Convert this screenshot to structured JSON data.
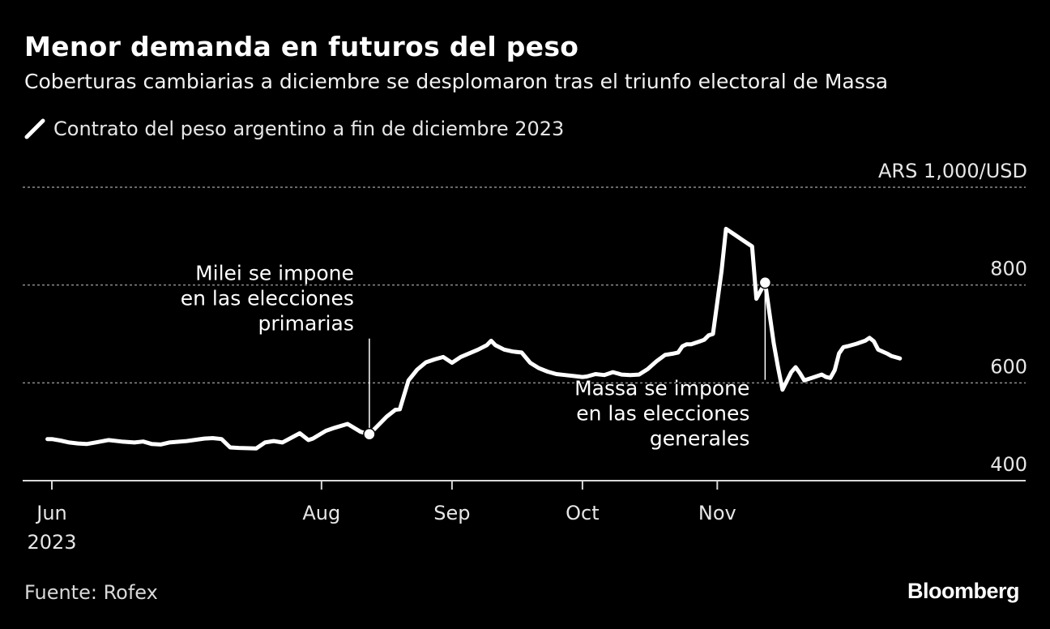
{
  "title": "Menor demanda en futuros del peso",
  "subtitle": "Coberturas cambiarias a diciembre se desplomaron tras el triunfo electoral de Massa",
  "legend": {
    "label": "Contrato del peso argentino a fin de diciembre 2023"
  },
  "source": "Fuente: Rofex",
  "brand": "Bloomberg",
  "colors": {
    "background": "#000000",
    "line": "#ffffff",
    "grid": "#8c8c8c"
  },
  "chart_data": {
    "type": "line",
    "title": "Menor demanda en futuros del peso",
    "unit": "ARS 1,000/USD",
    "ylim": [
      400,
      1000
    ],
    "yticks": [
      {
        "value": 400,
        "label": "400"
      },
      {
        "value": 600,
        "label": "600"
      },
      {
        "value": 800,
        "label": "800"
      },
      {
        "value": 1000,
        "label": ""
      }
    ],
    "grid": true,
    "x_domain": [
      "2023-06-01",
      "2023-11-30"
    ],
    "xticks": [
      {
        "date": "2023-06-01",
        "label": "Jun",
        "sublabel": "2023"
      },
      {
        "date": "2023-08-02",
        "label": "Aug",
        "sublabel": ""
      },
      {
        "date": "2023-09-01",
        "label": "Sep",
        "sublabel": ""
      },
      {
        "date": "2023-10-01",
        "label": "Oct",
        "sublabel": ""
      },
      {
        "date": "2023-11-01",
        "label": "Nov",
        "sublabel": ""
      }
    ],
    "series": [
      {
        "name": "Contrato del peso argentino a fin de diciembre 2023",
        "points": [
          [
            "2023-05-31",
            485
          ],
          [
            "2023-06-01",
            485
          ],
          [
            "2023-06-03",
            482
          ],
          [
            "2023-06-05",
            478
          ],
          [
            "2023-06-07",
            476
          ],
          [
            "2023-06-09",
            475
          ],
          [
            "2023-06-11",
            478
          ],
          [
            "2023-06-14",
            483
          ],
          [
            "2023-06-17",
            480
          ],
          [
            "2023-06-20",
            478
          ],
          [
            "2023-06-22",
            480
          ],
          [
            "2023-06-24",
            475
          ],
          [
            "2023-06-26",
            474
          ],
          [
            "2023-06-28",
            478
          ],
          [
            "2023-07-02",
            481
          ],
          [
            "2023-07-06",
            486
          ],
          [
            "2023-07-08",
            487
          ],
          [
            "2023-07-10",
            485
          ],
          [
            "2023-07-12",
            468
          ],
          [
            "2023-07-14",
            467
          ],
          [
            "2023-07-18",
            466
          ],
          [
            "2023-07-20",
            478
          ],
          [
            "2023-07-22",
            481
          ],
          [
            "2023-07-24",
            478
          ],
          [
            "2023-07-28",
            497
          ],
          [
            "2023-07-30",
            483
          ],
          [
            "2023-07-31",
            486
          ],
          [
            "2023-08-03",
            502
          ],
          [
            "2023-08-05",
            508
          ],
          [
            "2023-08-08",
            516
          ],
          [
            "2023-08-11",
            500
          ],
          [
            "2023-08-13",
            495
          ],
          [
            "2023-08-17",
            531
          ],
          [
            "2023-08-19",
            545
          ],
          [
            "2023-08-20",
            546
          ],
          [
            "2023-08-22",
            605
          ],
          [
            "2023-08-24",
            627
          ],
          [
            "2023-08-26",
            642
          ],
          [
            "2023-08-28",
            648
          ],
          [
            "2023-08-30",
            653
          ],
          [
            "2023-09-01",
            641
          ],
          [
            "2023-09-03",
            653
          ],
          [
            "2023-09-07",
            668
          ],
          [
            "2023-09-09",
            677
          ],
          [
            "2023-09-10",
            686
          ],
          [
            "2023-09-11",
            677
          ],
          [
            "2023-09-13",
            668
          ],
          [
            "2023-09-15",
            664
          ],
          [
            "2023-09-17",
            662
          ],
          [
            "2023-09-19",
            641
          ],
          [
            "2023-09-21",
            630
          ],
          [
            "2023-09-23",
            623
          ],
          [
            "2023-09-25",
            618
          ],
          [
            "2023-09-27",
            616
          ],
          [
            "2023-09-29",
            614
          ],
          [
            "2023-10-01",
            612
          ],
          [
            "2023-10-02",
            613
          ],
          [
            "2023-10-04",
            618
          ],
          [
            "2023-10-06",
            616
          ],
          [
            "2023-10-08",
            622
          ],
          [
            "2023-10-10",
            617
          ],
          [
            "2023-10-12",
            616
          ],
          [
            "2023-10-14",
            617
          ],
          [
            "2023-10-16",
            628
          ],
          [
            "2023-10-18",
            644
          ],
          [
            "2023-10-20",
            657
          ],
          [
            "2023-10-22",
            660
          ],
          [
            "2023-10-23",
            662
          ],
          [
            "2023-10-24",
            675
          ],
          [
            "2023-10-25",
            679
          ],
          [
            "2023-10-26",
            679
          ],
          [
            "2023-10-28",
            685
          ],
          [
            "2023-10-29",
            688
          ],
          [
            "2023-10-30",
            697
          ],
          [
            "2023-10-31",
            700
          ],
          [
            "2023-11-02",
            830
          ],
          [
            "2023-11-03",
            915
          ],
          [
            "2023-11-05",
            903
          ],
          [
            "2023-11-07",
            891
          ],
          [
            "2023-11-09",
            879
          ],
          [
            "2023-11-10",
            772
          ],
          [
            "2023-11-12",
            805
          ],
          [
            "2023-11-14",
            680
          ],
          [
            "2023-11-15",
            630
          ],
          [
            "2023-11-16",
            586
          ],
          [
            "2023-11-18",
            622
          ],
          [
            "2023-11-19",
            632
          ],
          [
            "2023-11-20",
            620
          ],
          [
            "2023-11-21",
            605
          ],
          [
            "2023-11-23",
            611
          ],
          [
            "2023-11-25",
            617
          ],
          [
            "2023-11-26",
            612
          ],
          [
            "2023-11-27",
            610
          ],
          [
            "2023-11-28",
            626
          ],
          [
            "2023-11-29",
            660
          ],
          [
            "2023-11-30",
            673
          ]
        ],
        "extension": [
          [
            "2023-11-30",
            673
          ],
          [
            "2023-12-01",
            675
          ],
          [
            "2023-12-03",
            680
          ],
          [
            "2023-12-05",
            686
          ],
          [
            "2023-12-06",
            692
          ],
          [
            "2023-12-07",
            685
          ],
          [
            "2023-12-08",
            668
          ],
          [
            "2023-12-10",
            660
          ],
          [
            "2023-12-11",
            655
          ],
          [
            "2023-12-13",
            650
          ]
        ]
      }
    ],
    "annotations": [
      {
        "date": "2023-08-13",
        "value": 495,
        "lines": [
          "Milei se impone",
          "en las elecciones",
          "primarias"
        ],
        "side": "left-above"
      },
      {
        "date": "2023-11-12",
        "value": 805,
        "lines": [
          "Massa se impone",
          "en las elecciones",
          "generales"
        ],
        "side": "left-below"
      }
    ]
  }
}
